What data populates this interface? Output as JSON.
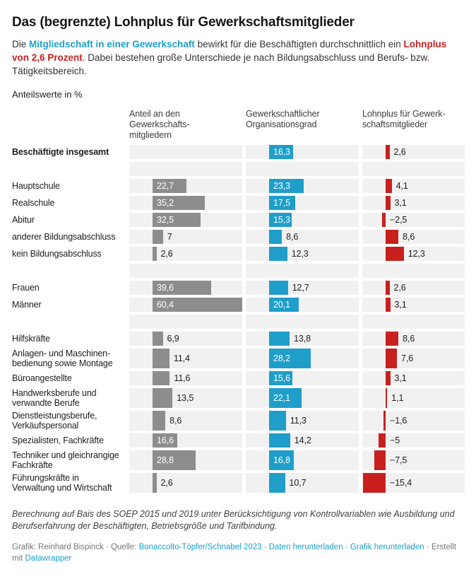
{
  "header": {
    "title": "Das (begrenzte) Lohnplus für Gewerkschaftsmitglieder",
    "intro": {
      "pre": "Die ",
      "highlight_blue": "Mitgliedschaft in einer Gewerkschaft",
      "mid": " bewirkt für die Beschäftigten durchschnittlich ein ",
      "highlight_red": "Lohnplus von 2,6 Prozent",
      "post": ". Dabei bestehen große Unterschiede je nach Bildungsabschluss und Berufs- bzw. Tätigkeitsbereich."
    },
    "unit_label": "Anteilswerte in %"
  },
  "colors": {
    "gray_bar": "#8d8d8d",
    "blue_bar": "#1e9ec9",
    "red_bar": "#c8201e",
    "track": "#f1f1f1"
  },
  "chart_data": {
    "type": "bar",
    "orientation": "horizontal",
    "unit": "%",
    "columns": [
      {
        "lines": [
          "Anteil an den Gewerkschafts-",
          "mitgliedern"
        ],
        "color": "#8d8d8d"
      },
      {
        "lines": [
          "Gewerkschaftlicher",
          "Organisationsgrad"
        ],
        "color": "#1e9ec9"
      },
      {
        "lines": [
          "Lohnplus für Gewerk-",
          "schaftsmitglieder"
        ],
        "color": "#c8201e"
      }
    ],
    "rows": [
      {
        "label": "Beschäftigte insgesamt",
        "bold": true,
        "bars": [
          null,
          16.3,
          2.6
        ],
        "labels": [
          "",
          "16,3",
          "2,6"
        ]
      },
      {
        "spacer": true
      },
      {
        "label": "Hauptschule",
        "bars": [
          22.7,
          23.3,
          4.1
        ],
        "labels": [
          "22,7",
          "23,3",
          "4,1"
        ]
      },
      {
        "label": "Realschule",
        "bars": [
          35.2,
          17.5,
          3.1
        ],
        "labels": [
          "35,2",
          "17,5",
          "3,1"
        ]
      },
      {
        "label": "Abitur",
        "bars": [
          32.5,
          15.3,
          -2.5
        ],
        "labels": [
          "32,5",
          "15,3",
          "−2,5"
        ]
      },
      {
        "label": "anderer Bildungsabschluss",
        "bars": [
          7,
          8.6,
          8.6
        ],
        "labels": [
          "7",
          "8,6",
          "8,6"
        ]
      },
      {
        "label": "kein Bildungsabschluss",
        "bars": [
          2.6,
          12.3,
          12.3
        ],
        "labels": [
          "2,6",
          "12,3",
          "12,3"
        ]
      },
      {
        "spacer": true
      },
      {
        "label": "Frauen",
        "bars": [
          39.6,
          12.7,
          2.6
        ],
        "labels": [
          "39,6",
          "12,7",
          "2,6"
        ]
      },
      {
        "label": "Männer",
        "bars": [
          60.4,
          20.1,
          3.1
        ],
        "labels": [
          "60,4",
          "20,1",
          "3,1"
        ]
      },
      {
        "spacer": true
      },
      {
        "label": "Hilfskräfte",
        "bars": [
          6.9,
          13.8,
          8.6
        ],
        "labels": [
          "6,9",
          "13,8",
          "8,6"
        ]
      },
      {
        "label": "Anlagen- und Maschinen-bedienung sowie Montage",
        "bars": [
          11.4,
          28.2,
          7.6
        ],
        "labels": [
          "11,4",
          "28,2",
          "7,6"
        ]
      },
      {
        "label": "Büroangestellte",
        "bars": [
          11.6,
          15.6,
          3.1
        ],
        "labels": [
          "11,6",
          "15,6",
          "3,1"
        ]
      },
      {
        "label": "Handwerksberufe und verwandte Berufe",
        "bars": [
          13.5,
          22.1,
          1.1
        ],
        "labels": [
          "13,5",
          "22,1",
          "1,1"
        ]
      },
      {
        "label": "Dienstleistungsberufe, Verkäufspersonal",
        "bars": [
          8.6,
          11.3,
          -1.6
        ],
        "labels": [
          "8,6",
          "11,3",
          "−1,6"
        ]
      },
      {
        "label": "Spezialisten, Fachkräfte",
        "bars": [
          16.6,
          14.2,
          -5
        ],
        "labels": [
          "16,6",
          "14,2",
          "−5"
        ]
      },
      {
        "label": "Techniker und gleichrangige Fachkräfte",
        "bars": [
          28.8,
          16.8,
          -7.5
        ],
        "labels": [
          "28,8",
          "16,8",
          "−7,5"
        ]
      },
      {
        "label": "Führungskräfte in Verwaltung und Wirtschaft",
        "bars": [
          2.6,
          10.7,
          -15.4
        ],
        "labels": [
          "2,6",
          "10,7",
          "−15,4"
        ]
      }
    ]
  },
  "footer": {
    "note": "Berechnung auf Bais des SOEP 2015 und 2019 unter Berücksichtigung von Kontrollvariablen wie Ausbildung und Berufserfahrung der Beschäftigten, Betriebsgröße und Tarifbindung.",
    "credits": {
      "prefix": "Grafik: Reinhard Bispinck · Quelle: ",
      "source_link": "Bonaccolto-Töpfer/Schnabel 2023",
      "sep1": " · ",
      "data_link": "Daten herunterladen",
      "sep2": " · ",
      "image_link": "Grafik herunterladen",
      "sep3": " · Erstellt mit ",
      "datawrapper_link": "Datawrapper"
    }
  }
}
